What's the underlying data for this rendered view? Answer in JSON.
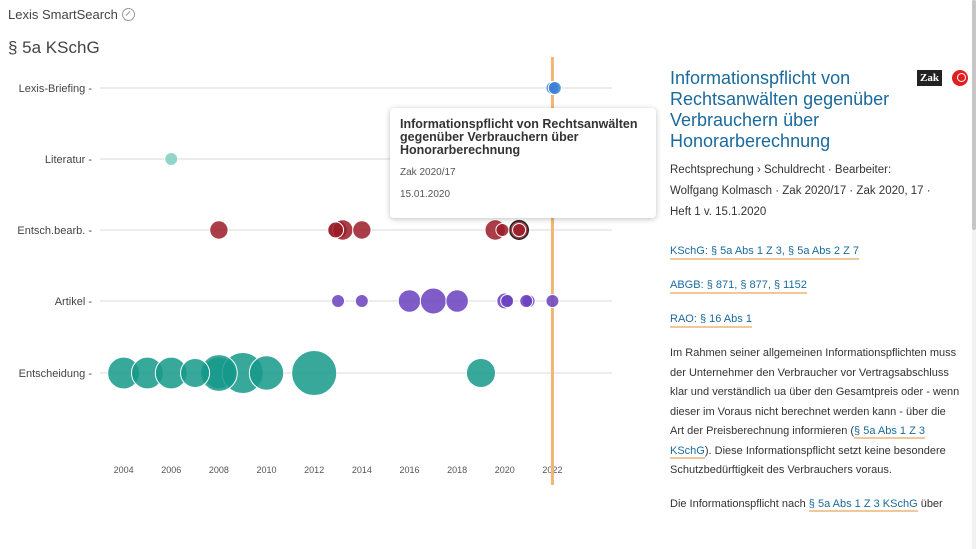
{
  "app": {
    "title": "Lexis SmartSearch",
    "page_title": "§ 5a KSchG"
  },
  "chart_data": {
    "type": "scatter",
    "title": "",
    "xlabel": "",
    "ylabel": "",
    "categories": [
      "Lexis-Briefing",
      "Literatur",
      "Entsch.bearb.",
      "Artikel",
      "Entscheidung"
    ],
    "x_ticks": [
      2004,
      2006,
      2008,
      2010,
      2012,
      2014,
      2016,
      2018,
      2020,
      2022
    ],
    "xlim": [
      2002.8,
      2024.5
    ],
    "highlight_year": 2022,
    "colors": {
      "Lexis-Briefing": "#3a7fd5",
      "Literatur": "#7fcfc2",
      "Entsch.bearb.": "#9b1c28",
      "Artikel": "#6a3fbf",
      "Entscheidung": "#15998a",
      "highlight": "#f3b574"
    },
    "points": [
      {
        "category": "Lexis-Briefing",
        "x": 2022.0,
        "size": 1
      },
      {
        "category": "Lexis-Briefing",
        "x": 2022.1,
        "size": 1
      },
      {
        "category": "Literatur",
        "x": 2006.0,
        "size": 1
      },
      {
        "category": "Entsch.bearb.",
        "x": 2008.0,
        "size": 2
      },
      {
        "category": "Entsch.bearb.",
        "x": 2013.0,
        "size": 2
      },
      {
        "category": "Entsch.bearb.",
        "x": 2013.2,
        "size": 2.5
      },
      {
        "category": "Entsch.bearb.",
        "x": 2012.9,
        "size": 1.5
      },
      {
        "category": "Entsch.bearb.",
        "x": 2014.0,
        "size": 2
      },
      {
        "category": "Entsch.bearb.",
        "x": 2019.6,
        "size": 2.5
      },
      {
        "category": "Entsch.bearb.",
        "x": 2020.6,
        "size": 2
      },
      {
        "category": "Entsch.bearb.",
        "x": 2019.9,
        "size": 1
      },
      {
        "category": "Entsch.bearb.",
        "x": 2020.6,
        "size": 1
      },
      {
        "category": "Artikel",
        "x": 2013.0,
        "size": 1
      },
      {
        "category": "Artikel",
        "x": 2014.0,
        "size": 1
      },
      {
        "category": "Artikel",
        "x": 2016.0,
        "size": 3
      },
      {
        "category": "Artikel",
        "x": 2017.0,
        "size": 4
      },
      {
        "category": "Artikel",
        "x": 2018.0,
        "size": 3
      },
      {
        "category": "Artikel",
        "x": 2020.0,
        "size": 1.5
      },
      {
        "category": "Artikel",
        "x": 2020.1,
        "size": 1
      },
      {
        "category": "Artikel",
        "x": 2021.0,
        "size": 1
      },
      {
        "category": "Artikel",
        "x": 2020.9,
        "size": 1
      },
      {
        "category": "Artikel",
        "x": 2022.0,
        "size": 1
      },
      {
        "category": "Entscheidung",
        "x": 2004.0,
        "size": 6
      },
      {
        "category": "Entscheidung",
        "x": 2005.0,
        "size": 6
      },
      {
        "category": "Entscheidung",
        "x": 2006.0,
        "size": 6
      },
      {
        "category": "Entscheidung",
        "x": 2008.0,
        "size": 6
      },
      {
        "category": "Entscheidung",
        "x": 2009.0,
        "size": 10
      },
      {
        "category": "Entscheidung",
        "x": 2010.0,
        "size": 7
      },
      {
        "category": "Entscheidung",
        "x": 2012.0,
        "size": 12
      },
      {
        "category": "Entscheidung",
        "x": 2008.0,
        "size": 8
      },
      {
        "category": "Entscheidung",
        "x": 2007.0,
        "size": 5
      },
      {
        "category": "Entscheidung",
        "x": 2019.0,
        "size": 5
      }
    ]
  },
  "tooltip": {
    "title": "Informationspflicht von Rechtsanwälten gegenüber Verbrauchern über Honorarberechnung",
    "source": "Zak 2020/17",
    "date": "15.01.2020"
  },
  "panel": {
    "title": "Informationspflicht von Rechtsanwälten gegenüber Verbrauchern über Honorarberechnung",
    "logo_zak": "Zak",
    "meta_line1": "Rechtsprechung › Schuldrecht · Bearbeiter:",
    "meta_line2": "Wolfgang Kolmasch · Zak 2020/17 · Zak 2020, 17 ·",
    "meta_line3": "Heft 1 v. 15.1.2020",
    "norm1_prefix": "KSchG: ",
    "norm1_a": "§ 5a Abs 1 Z 3",
    "norm1_sep": ", ",
    "norm1_b": "§ 5a Abs 2 Z 7",
    "norm2_prefix": "ABGB: ",
    "norm2_a": "§ 871",
    "norm2_sep1": ", ",
    "norm2_b": "§ 877",
    "norm2_sep2": ", ",
    "norm2_c": "§ 1152",
    "norm3_prefix": "RAO: ",
    "norm3_a": "§ 16 Abs 1",
    "body1_a": "Im Rahmen seiner allgemeinen Informationspflichten muss der Unternehmer den Verbraucher vor Vertragsabschluss klar und verständlich ua über den Gesamtpreis oder - wenn dieser im Voraus nicht berechnet werden kann - über die Art der Preisberechnung informieren (",
    "body1_link": "§ 5a Abs 1 Z 3 KSchG",
    "body1_b": "). Diese Informationspflicht setzt keine besondere Schutzbedürftigkeit des Verbrauchers voraus.",
    "body2_a": "Die Informationspflicht nach ",
    "body2_link": "§ 5a Abs 1 Z 3 KSchG",
    "body2_b": " über"
  }
}
